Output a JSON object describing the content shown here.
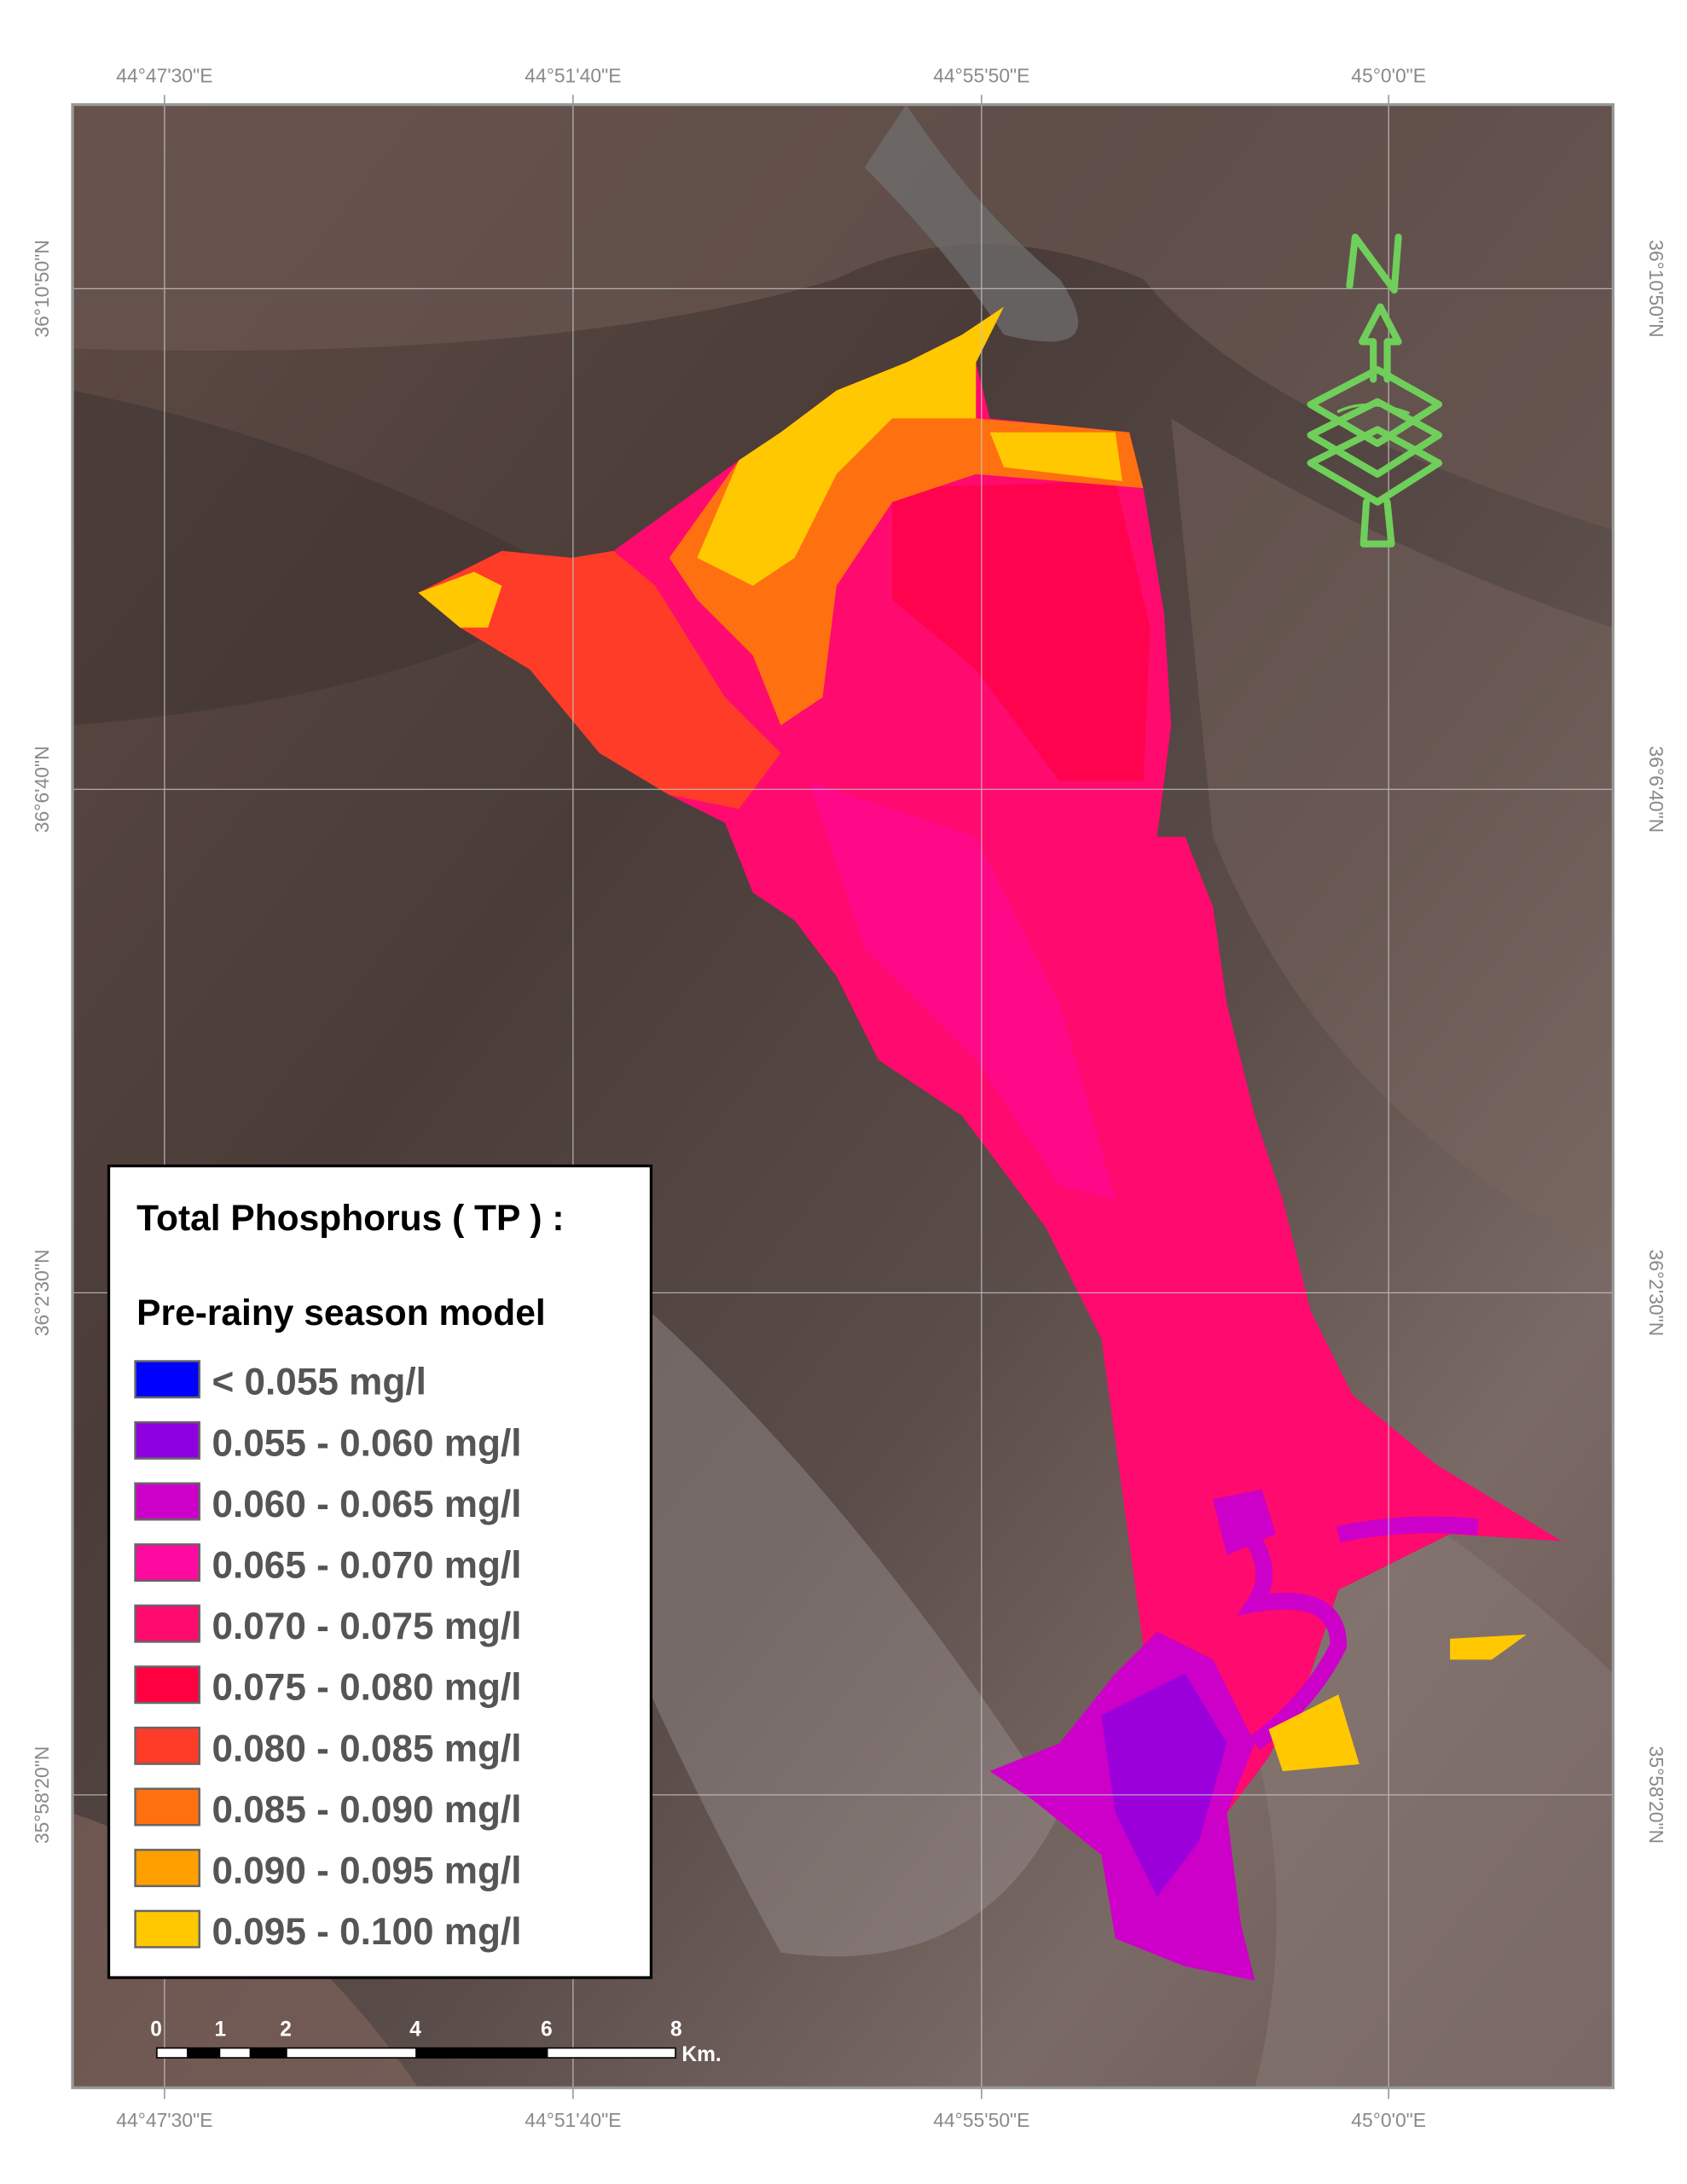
{
  "map": {
    "top_longitudes": [
      "44°47'30\"E",
      "44°51'40\"E",
      "44°55'50\"E",
      "45°0'0\"E"
    ],
    "bottom_longitudes": [
      "44°47'30\"E",
      "44°51'40\"E",
      "44°55'50\"E",
      "45°0'0\"E"
    ],
    "left_latitudes": [
      "36°10'50\"N",
      "36°6'40\"N",
      "36°2'30\"N",
      "35°58'20\"N"
    ],
    "right_latitudes": [
      "36°10'50\"N",
      "36°6'40\"N",
      "36°2'30\"N",
      "35°58'20\"N"
    ],
    "north_arrow": {
      "label": "N",
      "icon": "north-arrow-layers-icon",
      "color": "#6fcf5a"
    }
  },
  "legend": {
    "title": "Total Phosphorus ( TP ) :",
    "subtitle": "Pre-rainy season model",
    "classes": [
      {
        "label": "< 0.055 mg/l",
        "color": "#0000ff"
      },
      {
        "label": "0.055 - 0.060 mg/l",
        "color": "#8f00e0"
      },
      {
        "label": "0.060 - 0.065 mg/l",
        "color": "#cc00c8"
      },
      {
        "label": "0.065 - 0.070 mg/l",
        "color": "#ff0aa0"
      },
      {
        "label": "0.070 - 0.075 mg/l",
        "color": "#ff0a6e"
      },
      {
        "label": "0.075 - 0.080 mg/l",
        "color": "#ff0040"
      },
      {
        "label": "0.080 - 0.085 mg/l",
        "color": "#ff3c28"
      },
      {
        "label": "0.085 - 0.090 mg/l",
        "color": "#ff7010"
      },
      {
        "label": "0.090 - 0.095 mg/l",
        "color": "#ffa000"
      },
      {
        "label": "0.095 - 0.100 mg/l",
        "color": "#ffc800"
      }
    ]
  },
  "scale_bar": {
    "ticks": [
      "0",
      "1",
      "2",
      "4",
      "6",
      "8"
    ],
    "unit": "Km."
  }
}
